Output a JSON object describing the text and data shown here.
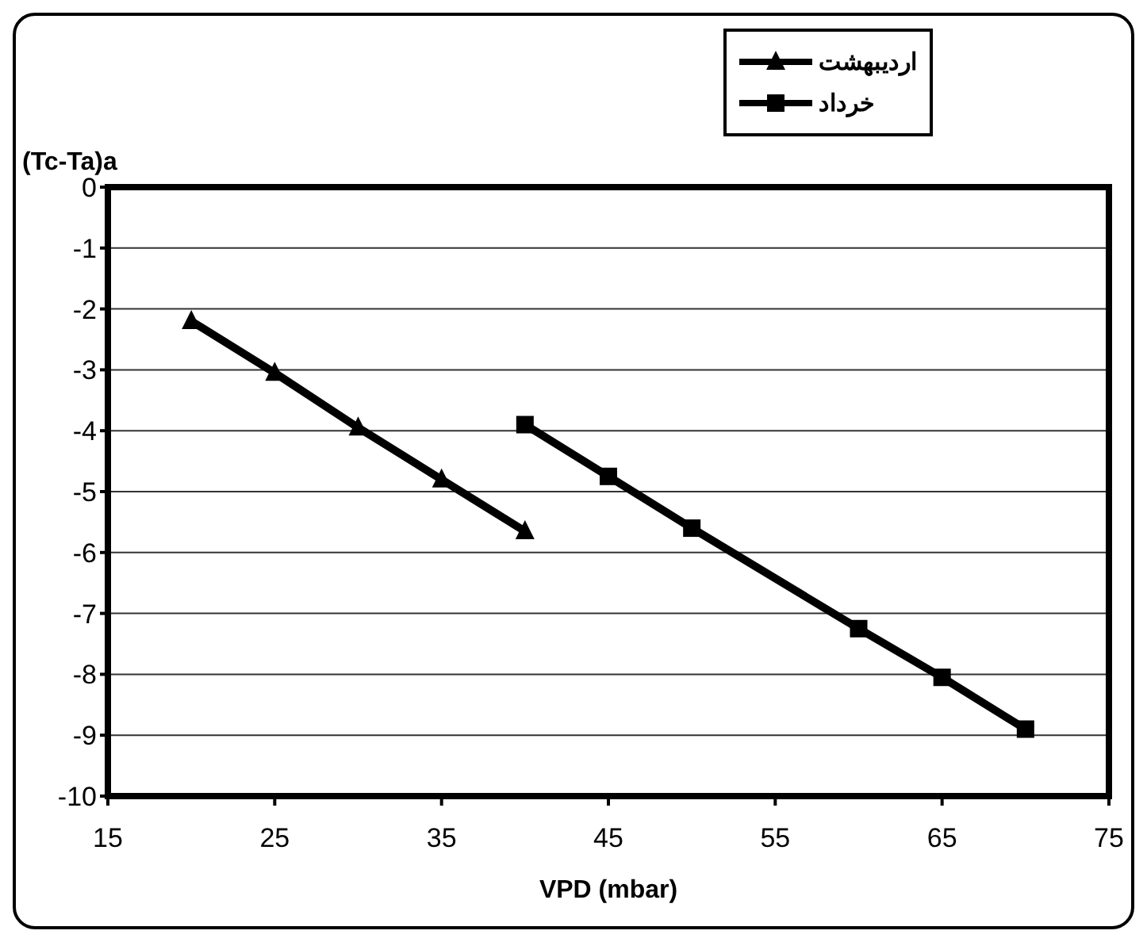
{
  "chart_data": {
    "type": "line",
    "xlabel": "VPD (mbar)",
    "ylabel": "(Tc-Ta)a",
    "xlim": [
      15,
      75
    ],
    "xticks": [
      15,
      25,
      35,
      45,
      55,
      65,
      75
    ],
    "ylim": [
      -10,
      0
    ],
    "yticks": [
      0,
      -1,
      -2,
      -3,
      -4,
      -5,
      -6,
      -7,
      -8,
      -9,
      -10
    ],
    "grid": "y",
    "legend": "top right",
    "series": [
      {
        "name": "اردیبهشت",
        "color": "#000000",
        "marker": "triangle",
        "x": [
          20,
          25,
          30,
          35,
          40
        ],
        "values": [
          -2.2,
          -3.05,
          -3.95,
          -4.8,
          -5.65
        ]
      },
      {
        "name": "خرداد",
        "color": "#000000",
        "marker": "square",
        "x": [
          40,
          45,
          50,
          60,
          65,
          70
        ],
        "values": [
          -3.9,
          -4.75,
          -5.6,
          -7.25,
          -8.05,
          -8.9
        ]
      }
    ]
  }
}
